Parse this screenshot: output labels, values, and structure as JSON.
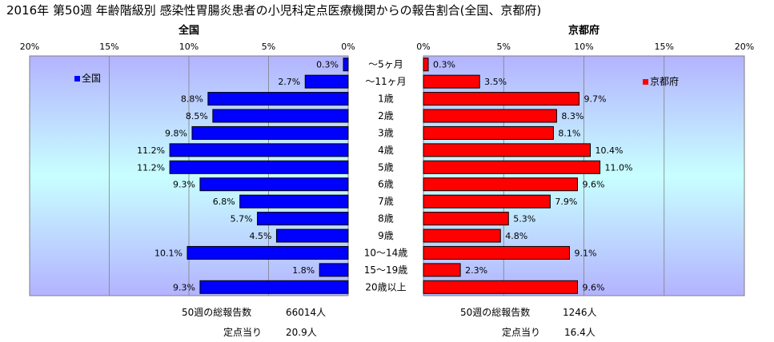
{
  "title": "2016年 第50週 年齢階級別 感染性胃腸炎患者の小児科定点医療機関からの報告割合(全国、京都府)",
  "chart_data": {
    "type": "bar",
    "categories": [
      "～5ヶ月",
      "～11ヶ月",
      "1歳",
      "2歳",
      "3歳",
      "4歳",
      "5歳",
      "6歳",
      "7歳",
      "8歳",
      "9歳",
      "10～14歳",
      "15～19歳",
      "20歳以上"
    ],
    "xlim": [
      0,
      20
    ],
    "ticks": [
      "0%",
      "5%",
      "10%",
      "15%",
      "20%"
    ],
    "left_ticks": [
      "20%",
      "15%",
      "10%",
      "5%",
      "0%"
    ],
    "series": [
      {
        "name": "全国",
        "panel_title": "全国",
        "color": "#0000ff",
        "values": [
          0.3,
          2.7,
          8.8,
          8.5,
          9.8,
          11.2,
          11.2,
          9.3,
          6.8,
          5.7,
          4.5,
          10.1,
          1.8,
          9.3
        ],
        "labels": [
          "0.3%",
          "2.7%",
          "8.8%",
          "8.5%",
          "9.8%",
          "11.2%",
          "11.2%",
          "9.3%",
          "6.8%",
          "5.7%",
          "4.5%",
          "10.1%",
          "1.8%",
          "9.3%"
        ]
      },
      {
        "name": "京都府",
        "panel_title": "京都府",
        "color": "#ff0000",
        "values": [
          0.3,
          3.5,
          9.7,
          8.3,
          8.1,
          10.4,
          11.0,
          9.6,
          7.9,
          5.3,
          4.8,
          9.1,
          2.3,
          9.6
        ],
        "labels": [
          "0.3%",
          "3.5%",
          "9.7%",
          "8.3%",
          "8.1%",
          "10.4%",
          "11.0%",
          "9.6%",
          "7.9%",
          "5.3%",
          "4.8%",
          "9.1%",
          "2.3%",
          "9.6%"
        ]
      }
    ]
  },
  "footer": {
    "national": {
      "total_label": "50週の総報告数",
      "total_value": "66014人",
      "per_label": "定点当り",
      "per_value": "20.9人"
    },
    "kyoto": {
      "total_label": "50週の総報告数",
      "total_value": "1246人",
      "per_label": "定点当り",
      "per_value": "16.4人"
    }
  }
}
